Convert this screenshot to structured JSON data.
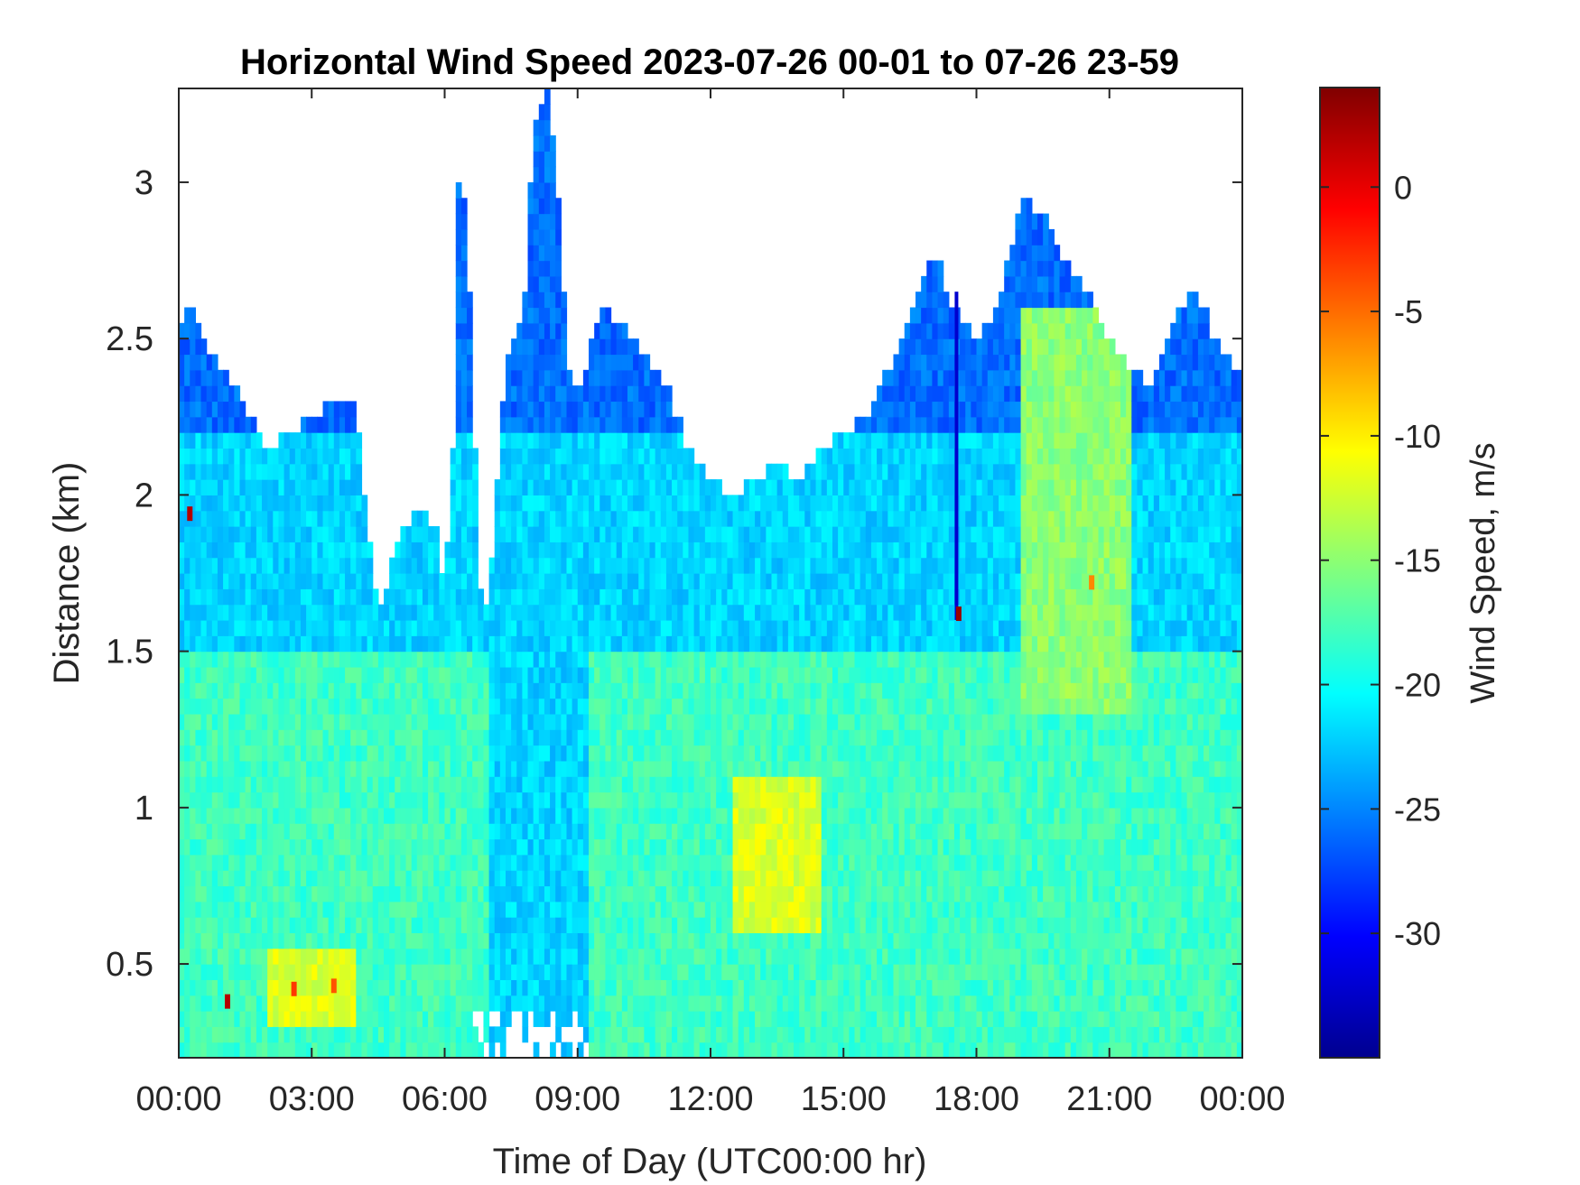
{
  "chart_data": {
    "type": "heatmap",
    "title": "Horizontal Wind Speed 2023-07-26 00-01 to 07-26 23-59",
    "xlabel": "Time of Day (UTC00:00 hr)",
    "ylabel": "Distance (km)",
    "colorbar_label": "Wind Speed, m/s",
    "colormap": "jet",
    "xlim": [
      0,
      24
    ],
    "ylim": [
      0.2,
      3.3
    ],
    "clim": [
      -35,
      4
    ],
    "x_ticks": [
      {
        "value": 0,
        "label": "00:00"
      },
      {
        "value": 3,
        "label": "03:00"
      },
      {
        "value": 6,
        "label": "06:00"
      },
      {
        "value": 9,
        "label": "09:00"
      },
      {
        "value": 12,
        "label": "12:00"
      },
      {
        "value": 15,
        "label": "15:00"
      },
      {
        "value": 18,
        "label": "18:00"
      },
      {
        "value": 21,
        "label": "21:00"
      },
      {
        "value": 24,
        "label": "00:00"
      }
    ],
    "y_ticks": [
      {
        "value": 0.5,
        "label": "0.5"
      },
      {
        "value": 1,
        "label": "1"
      },
      {
        "value": 1.5,
        "label": "1.5"
      },
      {
        "value": 2,
        "label": "2"
      },
      {
        "value": 2.5,
        "label": "2.5"
      },
      {
        "value": 3,
        "label": "3"
      }
    ],
    "colorbar_ticks": [
      {
        "value": 0,
        "label": "0"
      },
      {
        "value": -5,
        "label": "-5"
      },
      {
        "value": -10,
        "label": "-10"
      },
      {
        "value": -15,
        "label": "-15"
      },
      {
        "value": -20,
        "label": "-20"
      },
      {
        "value": -25,
        "label": "-25"
      },
      {
        "value": -30,
        "label": "-30"
      }
    ],
    "data_top_boundary_km": {
      "time_hr": [
        0,
        0.25,
        0.5,
        1,
        1.5,
        1.75,
        2,
        2.5,
        3,
        3.5,
        4,
        4.4,
        4.6,
        5,
        5.5,
        5.8,
        6,
        6.2,
        6.3,
        6.5,
        6.8,
        7,
        7.3,
        7.5,
        7.8,
        8,
        8.3,
        8.5,
        8.8,
        9,
        9.2,
        9.5,
        10,
        10.5,
        11,
        11.5,
        12,
        12.5,
        13,
        13.5,
        14,
        14.5,
        15,
        15.5,
        16,
        16.5,
        17,
        17.5,
        18,
        18.5,
        19,
        19.5,
        20,
        20.5,
        21,
        21.5,
        22,
        22.5,
        23,
        23.5,
        24
      ],
      "top_km": [
        2.5,
        2.65,
        2.5,
        2.4,
        2.3,
        2.2,
        2.15,
        2.2,
        2.25,
        2.3,
        2.3,
        1.7,
        1.65,
        1.9,
        1.95,
        1.9,
        1.7,
        2.2,
        3.0,
        2.9,
        1.7,
        1.65,
        2.3,
        2.5,
        2.6,
        3.2,
        3.3,
        3.1,
        2.4,
        2.3,
        2.4,
        2.6,
        2.55,
        2.45,
        2.35,
        2.15,
        2.05,
        2.0,
        2.05,
        2.1,
        2.05,
        2.15,
        2.2,
        2.25,
        2.4,
        2.55,
        2.8,
        2.6,
        2.5,
        2.6,
        2.95,
        2.9,
        2.75,
        2.65,
        2.5,
        2.4,
        2.35,
        2.6,
        2.65,
        2.45,
        2.4
      ]
    },
    "data_bottom_gap": {
      "time_hr": [
        6.5,
        9.2
      ],
      "top_km": 0.35
    },
    "speed_regions": [
      {
        "time_hr": [
          0,
          24
        ],
        "distance_km": [
          0.2,
          1.5
        ],
        "speed": -18
      },
      {
        "time_hr": [
          0,
          24
        ],
        "distance_km": [
          1.5,
          2.2
        ],
        "speed": -22
      },
      {
        "time_hr": [
          0,
          24
        ],
        "distance_km": [
          2.2,
          3.3
        ],
        "speed": -26
      },
      {
        "time_hr": [
          12.5,
          14.5
        ],
        "distance_km": [
          0.6,
          1.1
        ],
        "speed": -12
      },
      {
        "time_hr": [
          2,
          4
        ],
        "distance_km": [
          0.3,
          0.55
        ],
        "speed": -12
      },
      {
        "time_hr": [
          19,
          21.5
        ],
        "distance_km": [
          1.3,
          2.6
        ],
        "speed": -15
      },
      {
        "time_hr": [
          7,
          9.2
        ],
        "distance_km": [
          0.2,
          1.6
        ],
        "speed": -22
      }
    ],
    "spots": [
      {
        "time_hr": 0.25,
        "distance_km": 1.94,
        "speed": 2
      },
      {
        "time_hr": 1.1,
        "distance_km": 0.38,
        "speed": 2
      },
      {
        "time_hr": 2.6,
        "distance_km": 0.42,
        "speed": -3
      },
      {
        "time_hr": 3.5,
        "distance_km": 0.43,
        "speed": -4
      },
      {
        "time_hr": 17.6,
        "distance_km": 1.62,
        "speed": 3
      },
      {
        "time_hr": 20.6,
        "distance_km": 1.72,
        "speed": -6
      }
    ],
    "streaks": [
      {
        "time_hr": 17.55,
        "distance_km": [
          1.6,
          2.65
        ],
        "speed": -32
      }
    ]
  }
}
